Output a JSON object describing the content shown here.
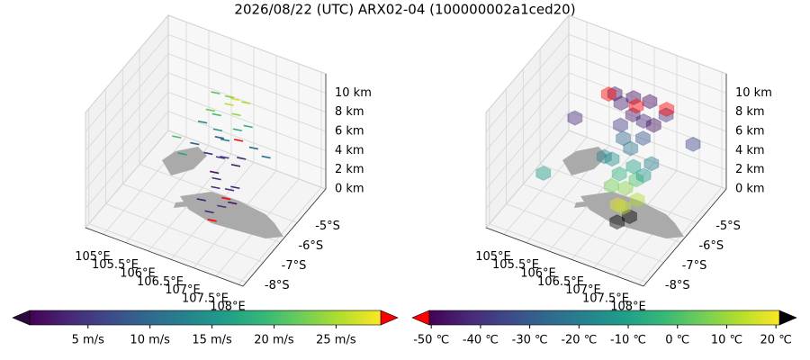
{
  "title": "2026/08/22 (UTC) ARX02-04 (100000002a1ced20)",
  "chart_data": [
    {
      "type": "scatter3d",
      "marker": "segment",
      "colormap": "viridis",
      "under_color": "#2b0a3d",
      "over_color": "#ff0000",
      "clim": [
        0.3,
        28.6
      ],
      "cticks": [
        {
          "value": 5,
          "label": "5 m/s"
        },
        {
          "value": 10,
          "label": "10 m/s"
        },
        {
          "value": 15,
          "label": "15 m/s"
        },
        {
          "value": 20,
          "label": "20 m/s"
        },
        {
          "value": 25,
          "label": "25 m/s"
        }
      ],
      "xlim": [
        104.6,
        108.1
      ],
      "ylim": [
        -8.2,
        -3.3
      ],
      "zlim": [
        0,
        12
      ],
      "xticks": [
        {
          "value": 105,
          "label": "105°E"
        },
        {
          "value": 105.5,
          "label": "105.5°E"
        },
        {
          "value": 106,
          "label": "106°E"
        },
        {
          "value": 106.5,
          "label": "106.5°E"
        },
        {
          "value": 107,
          "label": "107°E"
        },
        {
          "value": 107.5,
          "label": "107.5°E"
        },
        {
          "value": 108,
          "label": "108°E"
        }
      ],
      "yticks": [
        {
          "value": -8,
          "label": "-8°S"
        },
        {
          "value": -7,
          "label": "-7°S"
        },
        {
          "value": -6,
          "label": "-6°S"
        },
        {
          "value": -5,
          "label": "-5°S"
        }
      ],
      "zticks": [
        {
          "value": 0,
          "label": "0 km"
        },
        {
          "value": 2,
          "label": "2 km"
        },
        {
          "value": 4,
          "label": "4 km"
        },
        {
          "value": 6,
          "label": "6 km"
        },
        {
          "value": 8,
          "label": "8 km"
        },
        {
          "value": 10,
          "label": "10 km"
        }
      ],
      "x": [
        106.6,
        106.8,
        107.0,
        106.5,
        106.9,
        106.7,
        107.1,
        106.6,
        106.8,
        107.0,
        106.7,
        106.5,
        106.9,
        106.6,
        107.2,
        106.7,
        106.9,
        107.1,
        106.8,
        106.6,
        107.0,
        106.5,
        106.9,
        106.7,
        106.4,
        107.2,
        106.3,
        107.4,
        106.2,
        107.6,
        106.8,
        106.6,
        107.0,
        106.4,
        105.8,
        106.0
      ],
      "y": [
        -6.2,
        -6.0,
        -5.9,
        -6.4,
        -5.8,
        -6.1,
        -6.0,
        -5.9,
        -6.3,
        -5.7,
        -5.8,
        -6.0,
        -6.1,
        -5.6,
        -5.9,
        -6.3,
        -6.0,
        -5.8,
        -5.8,
        -5.7,
        -5.6,
        -5.5,
        -5.4,
        -5.3,
        -5.6,
        -5.5,
        -5.8,
        -5.7,
        -6.0,
        -5.5,
        -5.2,
        -5.0,
        -5.1,
        -5.3,
        -6.0,
        -6.2
      ],
      "z": [
        1,
        1.5,
        2,
        2.5,
        3,
        3.5,
        4,
        4.5,
        5,
        5.5,
        6,
        6.5,
        7,
        7.5,
        7,
        0.5,
        2.5,
        8.5,
        8,
        8.5,
        9,
        9.5,
        10,
        10.5,
        10,
        9.5,
        9,
        8,
        7,
        7,
        11,
        10.5,
        10.8,
        11.2,
        7,
        6
      ],
      "values": [
        3,
        4,
        2,
        3,
        5,
        4,
        3,
        2,
        4,
        3,
        5,
        4,
        6,
        8,
        4,
        31,
        30,
        30,
        12,
        15,
        18,
        20,
        24,
        26,
        22,
        19,
        14,
        10,
        9,
        11,
        27,
        23,
        25,
        21,
        20,
        17
      ]
    },
    {
      "type": "scatter3d",
      "marker": "cube",
      "colormap": "viridis",
      "under_color": "#ff0000",
      "over_color": "#000000",
      "clim": [
        -50.4,
        20.7
      ],
      "cticks": [
        {
          "value": -50,
          "label": "-50 ℃"
        },
        {
          "value": -40,
          "label": "-40 ℃"
        },
        {
          "value": -30,
          "label": "-30 ℃"
        },
        {
          "value": -20,
          "label": "-20 ℃"
        },
        {
          "value": -10,
          "label": "-10 ℃"
        },
        {
          "value": 0,
          "label": "0 ℃"
        },
        {
          "value": 10,
          "label": "10 ℃"
        },
        {
          "value": 20,
          "label": "20 ℃"
        }
      ],
      "xlim": [
        104.6,
        108.1
      ],
      "ylim": [
        -8.2,
        -3.3
      ],
      "zlim": [
        0,
        12
      ],
      "xticks": [
        {
          "value": 105,
          "label": "105°E"
        },
        {
          "value": 105.5,
          "label": "105.5°E"
        },
        {
          "value": 106,
          "label": "106°E"
        },
        {
          "value": 106.5,
          "label": "106.5°E"
        },
        {
          "value": 107,
          "label": "107°E"
        },
        {
          "value": 107.5,
          "label": "107.5°E"
        },
        {
          "value": 108,
          "label": "108°E"
        }
      ],
      "yticks": [
        {
          "value": -8,
          "label": "-8°S"
        },
        {
          "value": -7,
          "label": "-7°S"
        },
        {
          "value": -6,
          "label": "-6°S"
        },
        {
          "value": -5,
          "label": "-5°S"
        }
      ],
      "zticks": [
        {
          "value": 0,
          "label": "0 km"
        },
        {
          "value": 2,
          "label": "2 km"
        },
        {
          "value": 4,
          "label": "4 km"
        },
        {
          "value": 6,
          "label": "6 km"
        },
        {
          "value": 8,
          "label": "8 km"
        },
        {
          "value": 10,
          "label": "10 km"
        }
      ],
      "x": [
        106.8,
        107.0,
        106.7,
        106.9,
        107.1,
        106.8,
        106.6,
        107.0,
        106.7,
        106.9,
        106.5,
        107.2,
        106.4,
        107.3,
        106.8,
        106.6,
        107.0,
        106.5,
        106.9,
        106.7,
        107.2,
        106.4,
        106.6,
        107.0,
        106.3,
        107.4,
        106.2,
        106.7,
        107.3,
        105.2,
        105.6,
        108.0
      ],
      "y": [
        -6.3,
        -6.1,
        -6.0,
        -6.2,
        -5.9,
        -5.8,
        -6.1,
        -5.7,
        -5.9,
        -5.6,
        -5.8,
        -5.8,
        -6.0,
        -5.6,
        -5.5,
        -5.4,
        -5.3,
        -5.3,
        -5.0,
        -5.1,
        -5.2,
        -5.0,
        -4.8,
        -4.9,
        -5.1,
        -5.0,
        -5.2,
        -4.9,
        -4.7,
        -6.4,
        -5.6,
        -5.0
      ],
      "z": [
        0.5,
        1,
        1.5,
        2,
        2.5,
        3,
        3.5,
        4,
        4.5,
        5,
        5.5,
        5,
        6,
        6,
        6.5,
        7,
        7.5,
        8,
        8.5,
        9,
        9,
        9.5,
        10,
        10.5,
        10.5,
        10,
        10.5,
        9.5,
        9.8,
        3,
        7.8,
        8
      ],
      "values": [
        22,
        21,
        18,
        15,
        12,
        8,
        5,
        0,
        -5,
        -10,
        -14,
        -12,
        -18,
        -20,
        -22,
        -27,
        -32,
        -37,
        -42,
        -45,
        -48,
        -44,
        -47,
        -49,
        -46,
        -40,
        -55,
        -53,
        -54,
        -12,
        -42,
        -35
      ]
    }
  ]
}
